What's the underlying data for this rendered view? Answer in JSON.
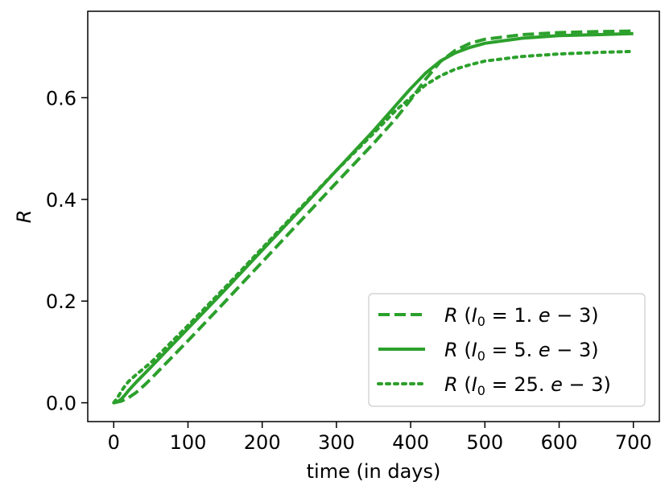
{
  "chart_data": {
    "type": "line",
    "xlabel": "time (in days)",
    "ylabel": "R",
    "xlim": [
      -35,
      735
    ],
    "ylim": [
      -0.037,
      0.77
    ],
    "xticks": [
      0,
      100,
      200,
      300,
      400,
      500,
      600,
      700
    ],
    "xtick_labels": [
      "0",
      "100",
      "200",
      "300",
      "400",
      "500",
      "600",
      "700"
    ],
    "yticks": [
      0.0,
      0.2,
      0.4,
      0.6
    ],
    "ytick_labels": [
      "0.0",
      "0.2",
      "0.4",
      "0.6"
    ],
    "grid": false,
    "legend_position": "lower right",
    "color": "#2ca02c",
    "series": [
      {
        "name": "R (I0 = 1. e − 3)",
        "label_parts": [
          "R",
          "(",
          "I",
          "0",
          " = 1. ",
          "e",
          " − 3)"
        ],
        "linestyle": "dashed",
        "x": [
          0,
          10,
          20,
          30,
          40,
          50,
          100,
          150,
          200,
          250,
          300,
          350,
          380,
          400,
          420,
          440,
          460,
          480,
          500,
          550,
          600,
          650,
          700
        ],
        "y": [
          0.0,
          0.003,
          0.01,
          0.02,
          0.033,
          0.047,
          0.122,
          0.199,
          0.277,
          0.355,
          0.433,
          0.51,
          0.559,
          0.596,
          0.636,
          0.671,
          0.693,
          0.707,
          0.715,
          0.724,
          0.728,
          0.73,
          0.731
        ]
      },
      {
        "name": "R (I0 = 5. e − 3)",
        "label_parts": [
          "R",
          "(",
          "I",
          "0",
          " = 5. ",
          "e",
          " − 3)"
        ],
        "linestyle": "solid",
        "x": [
          0,
          5,
          10,
          15,
          20,
          30,
          50,
          100,
          150,
          200,
          250,
          300,
          350,
          380,
          400,
          420,
          440,
          460,
          480,
          500,
          550,
          600,
          650,
          700
        ],
        "y": [
          0.0,
          0.002,
          0.007,
          0.015,
          0.024,
          0.04,
          0.07,
          0.146,
          0.222,
          0.3,
          0.378,
          0.457,
          0.535,
          0.585,
          0.618,
          0.648,
          0.672,
          0.688,
          0.699,
          0.707,
          0.717,
          0.722,
          0.724,
          0.726
        ]
      },
      {
        "name": "R (I0 = 25. e − 3)",
        "label_parts": [
          "R",
          "(",
          "I",
          "0",
          " = 25. ",
          "e",
          " − 3)"
        ],
        "linestyle": "dotted",
        "x": [
          0,
          5,
          10,
          15,
          20,
          30,
          50,
          100,
          150,
          200,
          250,
          300,
          350,
          380,
          400,
          420,
          440,
          460,
          480,
          500,
          550,
          600,
          650,
          700
        ],
        "y": [
          0.0,
          0.01,
          0.022,
          0.033,
          0.042,
          0.055,
          0.079,
          0.152,
          0.227,
          0.304,
          0.381,
          0.457,
          0.53,
          0.575,
          0.6,
          0.625,
          0.643,
          0.656,
          0.665,
          0.672,
          0.681,
          0.686,
          0.689,
          0.691
        ]
      }
    ]
  }
}
